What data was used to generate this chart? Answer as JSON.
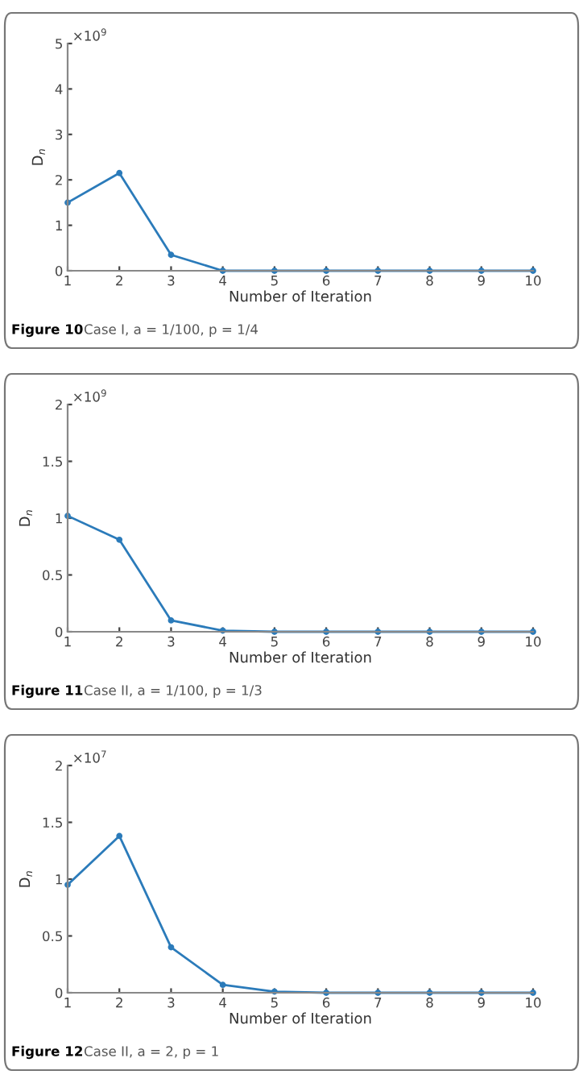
{
  "chart_data": [
    {
      "type": "line",
      "title": "Figure 10",
      "subtitle": "Case I, a = 1/100, p = 1/4",
      "xlabel": "Number of Iteration",
      "ylabel": "D$_{n}$",
      "annotations": [
        "×10$^{9}$"
      ],
      "x": [
        1,
        2,
        3,
        4,
        5,
        6,
        7,
        8,
        9,
        10
      ],
      "series": [
        {
          "color": "#2b7bba",
          "values": [
            1.5,
            2.15,
            0.35,
            0,
            0,
            0,
            0,
            0,
            0,
            0
          ]
        }
      ],
      "xlim": [
        1,
        10
      ],
      "xticks": [
        1,
        2,
        3,
        4,
        5,
        6,
        7,
        8,
        9,
        10
      ],
      "ylim": [
        0,
        5
      ],
      "yticks": [
        0,
        1,
        2,
        3,
        4,
        5
      ],
      "grid": false,
      "legend": false,
      "marker": "circle",
      "line_style": "solid"
    },
    {
      "type": "line",
      "title": "Figure 11",
      "subtitle": "Case II, a = 1/100, p = 1/3",
      "xlabel": "Number of Iteration",
      "ylabel": "D$_{n}$",
      "annotations": [
        "×10$^{9}$"
      ],
      "x": [
        1,
        2,
        3,
        4,
        5,
        6,
        7,
        8,
        9,
        10
      ],
      "series": [
        {
          "color": "#2b7bba",
          "values": [
            1.02,
            0.81,
            0.1,
            0.01,
            0,
            0,
            0,
            0,
            0,
            0
          ]
        }
      ],
      "xlim": [
        1,
        10
      ],
      "xticks": [
        1,
        2,
        3,
        4,
        5,
        6,
        7,
        8,
        9,
        10
      ],
      "ylim": [
        0,
        2
      ],
      "yticks": [
        0,
        0.5,
        1,
        1.5,
        2
      ],
      "grid": false,
      "legend": false,
      "marker": "circle",
      "line_style": "solid"
    },
    {
      "type": "line",
      "title": "Figure 12",
      "subtitle": "Case II, a = 2, p = 1",
      "xlabel": "Number of Iteration",
      "ylabel": "D$_{n}$",
      "annotations": [
        "×10$^{7}$"
      ],
      "x": [
        1,
        2,
        3,
        4,
        5,
        6,
        7,
        8,
        9,
        10
      ],
      "series": [
        {
          "color": "#2b7bba",
          "values": [
            0.95,
            1.38,
            0.4,
            0.07,
            0.01,
            0,
            0,
            0,
            0,
            0
          ]
        }
      ],
      "xlim": [
        1,
        10
      ],
      "xticks": [
        1,
        2,
        3,
        4,
        5,
        6,
        7,
        8,
        9,
        10
      ],
      "ylim": [
        0,
        2
      ],
      "yticks": [
        0,
        0.5,
        1,
        1.5,
        2
      ],
      "grid": false,
      "legend": false,
      "marker": "circle",
      "line_style": "solid"
    }
  ]
}
